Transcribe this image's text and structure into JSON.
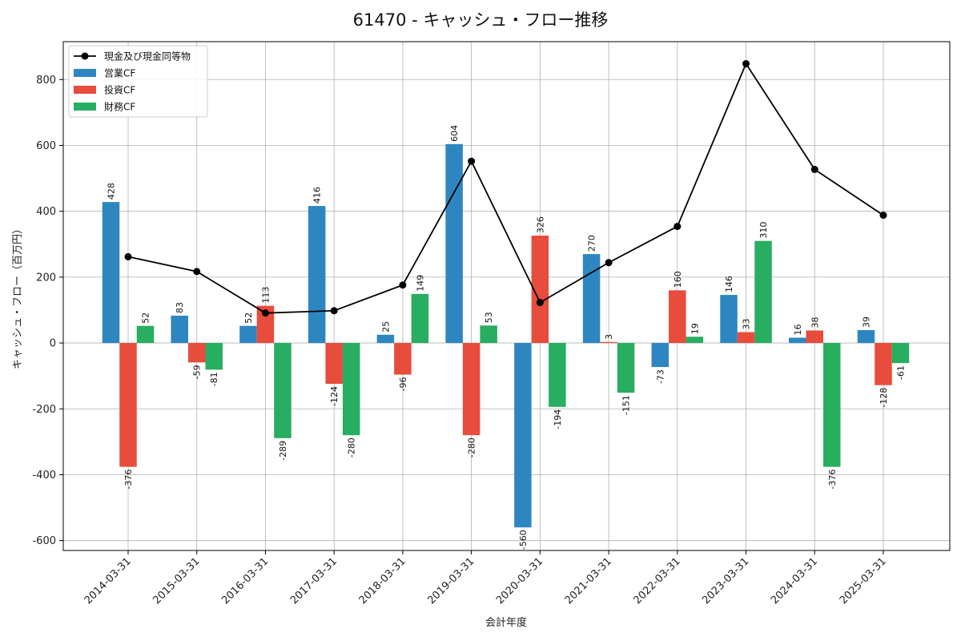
{
  "chart_data": {
    "type": "bar",
    "title": "61470 - キャッシュ・フロー推移",
    "xlabel": "会計年度",
    "ylabel": "キャッシュ・フロー（百万円）",
    "ylim": [
      -630,
      915
    ],
    "yticks": [
      -600,
      -400,
      -200,
      0,
      200,
      400,
      600,
      800
    ],
    "grid": true,
    "legend_position": "top-left",
    "categories": [
      "2014-03-31",
      "2015-03-31",
      "2016-03-31",
      "2017-03-31",
      "2018-03-31",
      "2019-03-31",
      "2020-03-31",
      "2021-03-31",
      "2022-03-31",
      "2023-03-31",
      "2024-03-31",
      "2025-03-31"
    ],
    "line_series": {
      "name": "現金及び現金同等物",
      "color": "#000000",
      "values": [
        262,
        217,
        91,
        98,
        176,
        552,
        123,
        244,
        354,
        848,
        527,
        388
      ]
    },
    "series": [
      {
        "name": "営業CF",
        "color": "#2e86c1",
        "values": [
          428,
          83,
          52,
          416,
          25,
          604,
          -560,
          270,
          -73,
          146,
          16,
          39
        ]
      },
      {
        "name": "投資CF",
        "color": "#e74c3c",
        "values": [
          -376,
          -59,
          113,
          -124,
          -96,
          -280,
          326,
          3,
          160,
          33,
          38,
          -128
        ]
      },
      {
        "name": "財務CF",
        "color": "#27ae60",
        "values": [
          52,
          -81,
          -289,
          -280,
          149,
          53,
          -194,
          -151,
          19,
          310,
          -376,
          -61
        ]
      }
    ]
  }
}
